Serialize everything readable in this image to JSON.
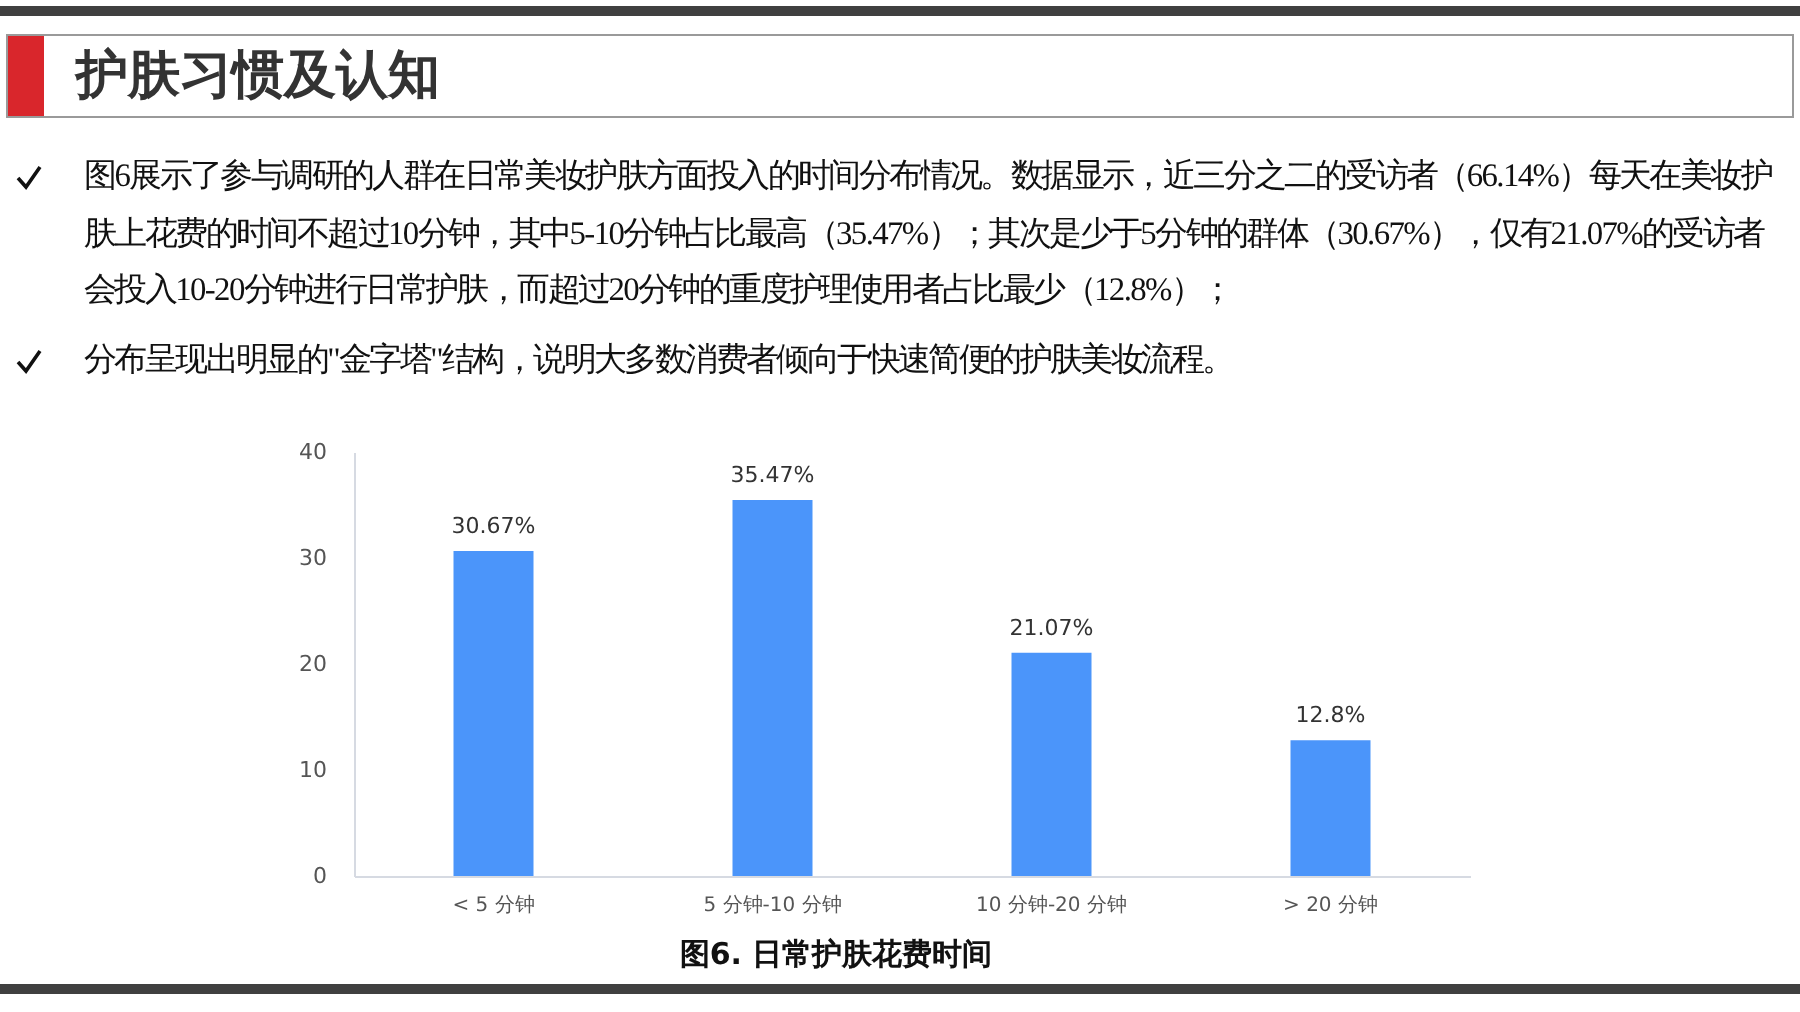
{
  "chart_data": {
    "type": "bar",
    "title": "护肤习惯及认知",
    "annotations": [
      "图6展示了参与调研的人群在日常美妆护肤方面投入的时间分布情况。数据显示，近三分之二的受访者（66.14%）每天在美妆护肤上花费的时间不超过10分钟，其中5-10分钟占比最高（35.47%）；其次是少于5分钟的群体（30.67%），仅有21.07%的受访者会投入10-20分钟进行日常护肤，而超过20分钟的重度护理使用者占比最少（12.8%）；",
      "分布呈现出明显的\"金字塔\"结构，说明大多数消费者倾向于快速简便的护肤美妆流程。",
      "图6. 日常护肤花费时间"
    ],
    "categories": [
      "< 5 分钟",
      "5 分钟-10 分钟",
      "10 分钟-20 分钟",
      "> 20 分钟"
    ],
    "values": [
      30.67,
      35.47,
      21.07,
      12.8
    ],
    "value_labels": [
      "30.67%",
      "35.47%",
      "21.07%",
      "12.8%"
    ],
    "color": "#4b95fa",
    "ylim": [
      0,
      40
    ],
    "yticks": [
      0,
      10,
      20,
      30,
      40
    ],
    "grid": false
  }
}
